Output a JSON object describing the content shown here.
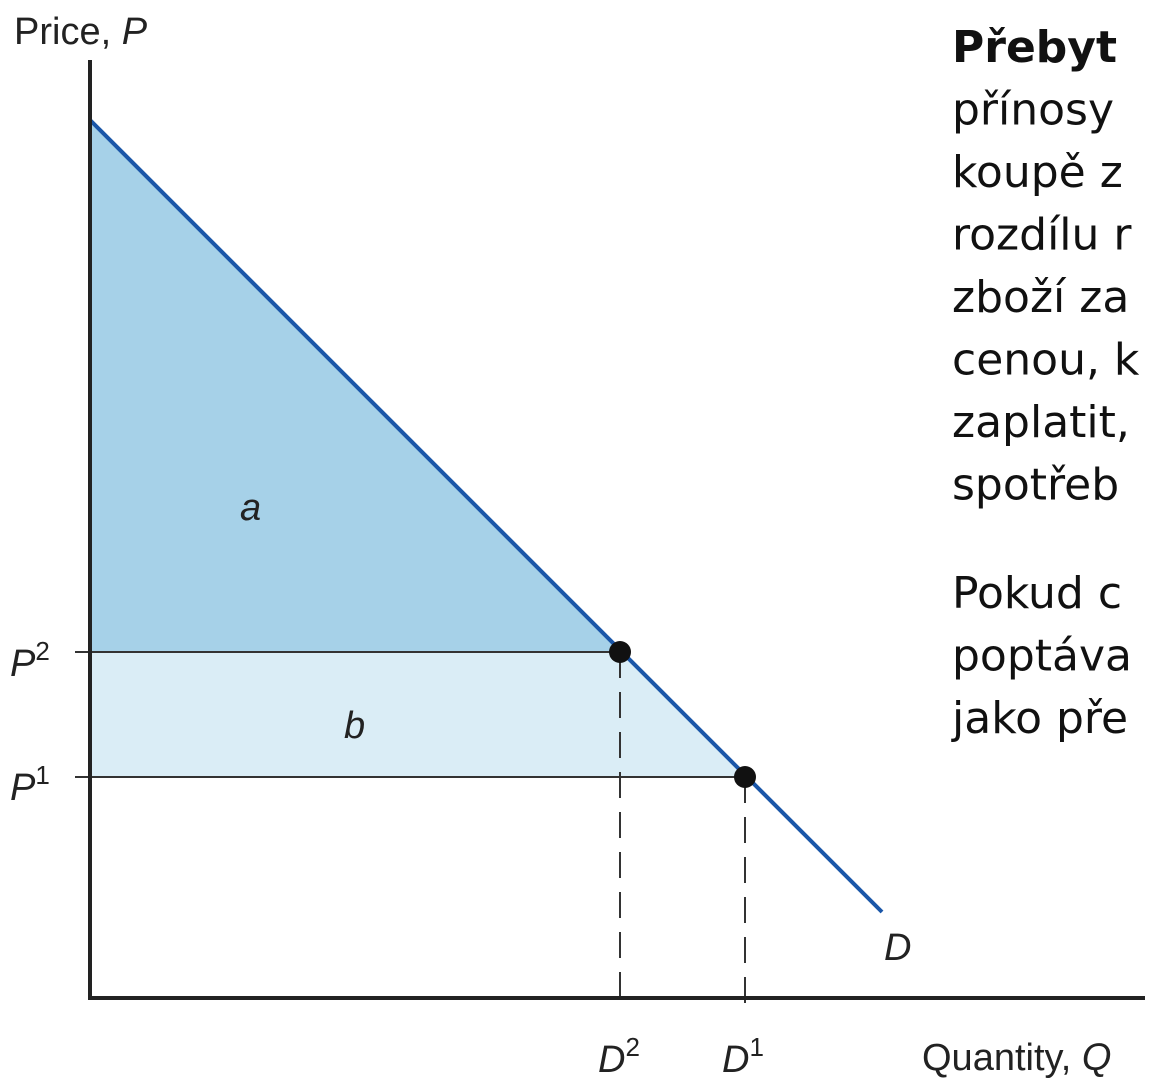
{
  "diagram": {
    "y_axis_label": {
      "text": "Price, ",
      "var": "P"
    },
    "x_axis_label": {
      "text": "Quantity, ",
      "var": "Q"
    },
    "price_labels": [
      {
        "base": "P",
        "sup": "2"
      },
      {
        "base": "P",
        "sup": "1"
      }
    ],
    "quantity_labels": [
      {
        "base": "D",
        "sup": "2"
      },
      {
        "base": "D",
        "sup": "1"
      }
    ],
    "curve_label": "D",
    "region_labels": [
      "a",
      "b"
    ]
  },
  "side_text": {
    "paragraphs": [
      [
        "Přebyt",
        "přínosy",
        "koupě z",
        "rozdílu r",
        "zboží za",
        "cenou, k",
        "zaplatit,",
        "spotřeb"
      ],
      [
        "Pokud c",
        "poptáva",
        "jako pře"
      ]
    ]
  }
}
